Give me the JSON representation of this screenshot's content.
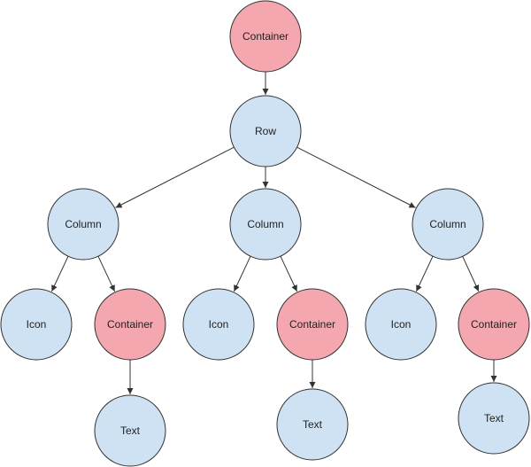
{
  "colors": {
    "leaf": "#cfe2f3",
    "container": "#f4a7ae",
    "stroke": "#333333",
    "edge": "#333333"
  },
  "nodes": [
    {
      "id": "root",
      "label": "Container",
      "kind": "container"
    },
    {
      "id": "row",
      "label": "Row",
      "kind": "leaf"
    },
    {
      "id": "col1",
      "label": "Column",
      "kind": "leaf"
    },
    {
      "id": "col2",
      "label": "Column",
      "kind": "leaf"
    },
    {
      "id": "col3",
      "label": "Column",
      "kind": "leaf"
    },
    {
      "id": "icon1",
      "label": "Icon",
      "kind": "leaf"
    },
    {
      "id": "cont1",
      "label": "Container",
      "kind": "container"
    },
    {
      "id": "icon2",
      "label": "Icon",
      "kind": "leaf"
    },
    {
      "id": "cont2",
      "label": "Container",
      "kind": "container"
    },
    {
      "id": "icon3",
      "label": "Icon",
      "kind": "leaf"
    },
    {
      "id": "cont3",
      "label": "Container",
      "kind": "container"
    },
    {
      "id": "text1",
      "label": "Text",
      "kind": "leaf"
    },
    {
      "id": "text2",
      "label": "Text",
      "kind": "leaf"
    },
    {
      "id": "text3",
      "label": "Text",
      "kind": "leaf"
    }
  ],
  "edges": [
    [
      "root",
      "row"
    ],
    [
      "row",
      "col1"
    ],
    [
      "row",
      "col2"
    ],
    [
      "row",
      "col3"
    ],
    [
      "col1",
      "icon1"
    ],
    [
      "col1",
      "cont1"
    ],
    [
      "col2",
      "icon2"
    ],
    [
      "col2",
      "cont2"
    ],
    [
      "col3",
      "icon3"
    ],
    [
      "col3",
      "cont3"
    ],
    [
      "cont1",
      "text1"
    ],
    [
      "cont2",
      "text2"
    ],
    [
      "cont3",
      "text3"
    ]
  ]
}
